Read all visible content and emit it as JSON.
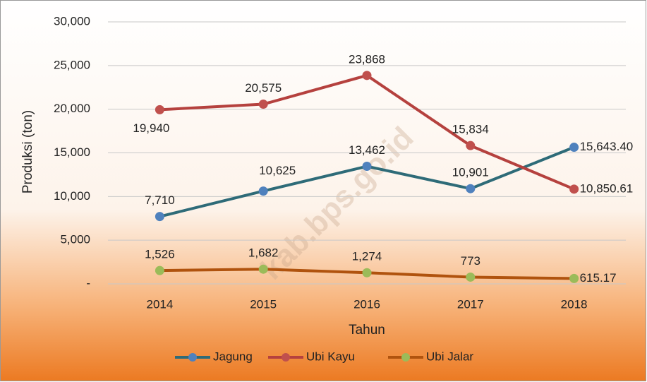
{
  "chart_data": {
    "type": "line",
    "categories": [
      "2014",
      "2015",
      "2016",
      "2017",
      "2018"
    ],
    "series": [
      {
        "name": "Jagung",
        "color": "#2e6b78",
        "marker_color": "#4f81bd",
        "values": [
          7710,
          10625,
          13462,
          10901,
          15643.4
        ],
        "value_labels": [
          "7,710",
          "10,625",
          "13,462",
          "10,901",
          "15,643.40"
        ]
      },
      {
        "name": "Ubi Kayu",
        "color": "#b5413e",
        "marker_color": "#c0504d",
        "values": [
          19940,
          20575,
          23868,
          15834,
          10850.61
        ],
        "value_labels": [
          "19,940",
          "20,575",
          "23,868",
          "15,834",
          "10,850.61"
        ]
      },
      {
        "name": "Ubi Jalar",
        "color": "#b0530e",
        "marker_color": "#9bbb59",
        "values": [
          1526,
          1682,
          1274,
          773,
          615.17
        ],
        "value_labels": [
          "1,526",
          "1,682",
          "1,274",
          "773",
          "615.17"
        ]
      }
    ],
    "y_label": "Produksi (ton)",
    "x_label": "Tahun",
    "ylim": [
      0,
      30000
    ],
    "yticks": [
      {
        "value": 0,
        "label": "-"
      },
      {
        "value": 5000,
        "label": "5,000"
      },
      {
        "value": 10000,
        "label": "10,000"
      },
      {
        "value": 15000,
        "label": "15,000"
      },
      {
        "value": 20000,
        "label": "20,000"
      },
      {
        "value": 25000,
        "label": "25,000"
      },
      {
        "value": 30000,
        "label": "30,000"
      }
    ],
    "grid": true,
    "legend": "bottom",
    "watermark": "kab.bps.go.id"
  }
}
